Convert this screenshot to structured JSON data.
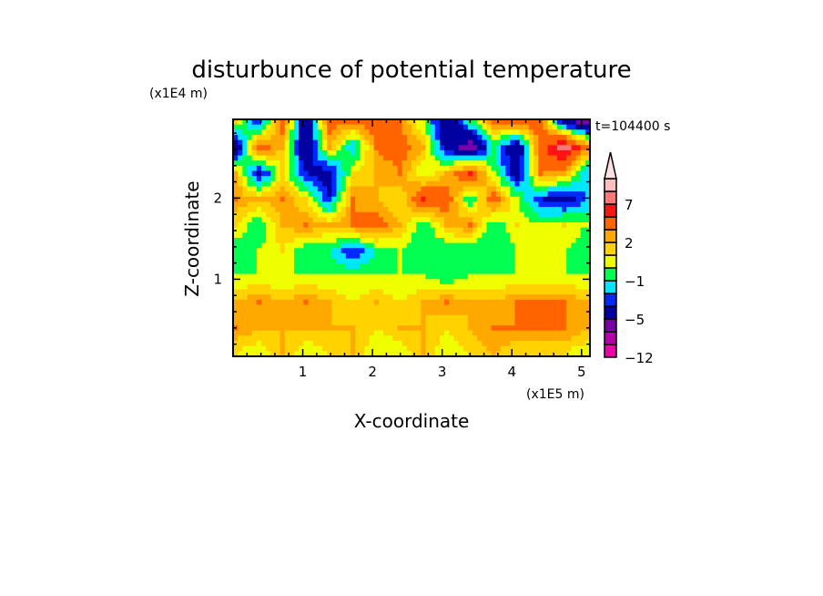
{
  "chart_data": {
    "type": "heatmap",
    "title": "disturbunce of potential temperature",
    "time_label": "t=104400 s",
    "xlabel": "X-coordinate",
    "ylabel": "Z-coordinate",
    "x_unit": "(x1E5 m)",
    "y_unit": "(x1E4 m)",
    "xlim": [
      0,
      5.12
    ],
    "ylim": [
      0.05,
      2.97
    ],
    "xticks": [
      1,
      2,
      3,
      4,
      5
    ],
    "yticks": [
      1,
      2
    ],
    "colorbar": {
      "levels": [
        -12,
        -9,
        -7,
        -5,
        -3,
        -2,
        -1,
        0,
        1,
        2,
        3,
        5,
        7,
        9,
        11
      ],
      "tick_labels": [
        "-12",
        "-5",
        "-1",
        "2",
        "7"
      ],
      "tick_values": [
        -12,
        -5,
        -1,
        2,
        7
      ],
      "colors": [
        "#f000a8",
        "#b400a8",
        "#7800aa",
        "#0000a0",
        "#0028ff",
        "#00e6ff",
        "#00ff50",
        "#f0ff00",
        "#ffd200",
        "#ffa800",
        "#ff6400",
        "#ff1414",
        "#ff7878",
        "#ffbebe"
      ],
      "overflow_color": "#ffe0e0"
    },
    "grid_rows_top_to_bottom": [
      [
        1,
        -3,
        4,
        -5,
        4,
        3,
        4,
        3,
        0,
        -5,
        -1,
        3,
        4,
        4,
        -4,
        -6
      ],
      [
        -5,
        4,
        2,
        -5,
        2,
        -2,
        3,
        4,
        2,
        -4,
        -6,
        -1,
        -5,
        4,
        8,
        3
      ],
      [
        2,
        -4,
        1,
        -3,
        -4,
        1,
        2,
        3,
        0,
        2,
        5,
        0,
        -4,
        3,
        2,
        -2
      ],
      [
        3,
        2,
        3,
        1,
        -3,
        3,
        2,
        1,
        5,
        4,
        -1,
        4,
        0,
        -3,
        -4,
        -2
      ],
      [
        1,
        -1,
        2,
        3,
        2,
        3,
        4,
        2,
        -1,
        2,
        3,
        -1,
        1,
        0,
        1,
        0
      ],
      [
        -1,
        0,
        1,
        -1,
        -1,
        -3,
        -1,
        0,
        -1,
        -1,
        -1,
        -1,
        0,
        0,
        0,
        -1
      ],
      [
        0,
        0,
        0,
        0,
        0,
        0,
        0,
        0,
        0,
        -1,
        0,
        0,
        0,
        0,
        0,
        0
      ],
      [
        2,
        3,
        2,
        3,
        2,
        1,
        2,
        1,
        2,
        3,
        2,
        2,
        3,
        3,
        3,
        2
      ],
      [
        3,
        2,
        2,
        2,
        2,
        2,
        1,
        2,
        2,
        1,
        2,
        3,
        3,
        3,
        3,
        2
      ],
      [
        1,
        0,
        2,
        0,
        1,
        2,
        0,
        0,
        2,
        0,
        1,
        2,
        1,
        1,
        1,
        0
      ]
    ]
  }
}
